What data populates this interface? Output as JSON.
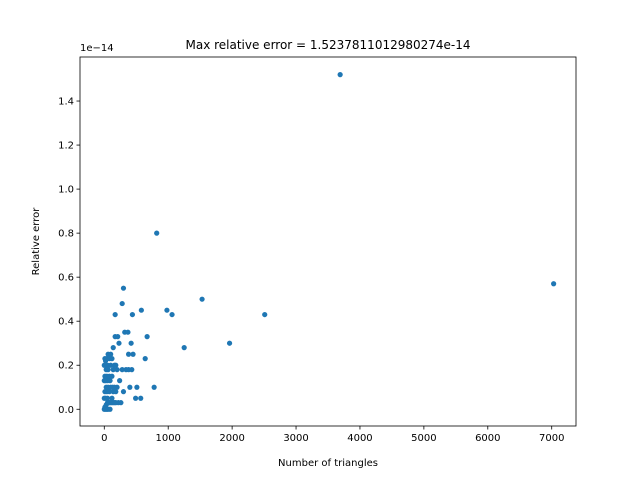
{
  "chart_data": {
    "type": "scatter",
    "title": "Max relative error = 1.5237811012980274e-14",
    "xlabel": "Number of triangles",
    "ylabel": "Relative error",
    "y_offset_label": "1e−14",
    "xlim": [
      -380,
      7380
    ],
    "ylim": [
      -0.076,
      1.6
    ],
    "xticks": [
      0,
      1000,
      2000,
      3000,
      4000,
      5000,
      6000,
      7000
    ],
    "yticks": [
      0.0,
      0.2,
      0.4,
      0.6,
      0.8,
      1.0,
      1.2,
      1.4
    ],
    "xtick_labels": [
      "0",
      "1000",
      "2000",
      "3000",
      "4000",
      "5000",
      "6000",
      "7000"
    ],
    "ytick_labels": [
      "0.0",
      "0.2",
      "0.4",
      "0.6",
      "0.8",
      "1.0",
      "1.2",
      "1.4"
    ],
    "grid": false,
    "color": "#1f77b4",
    "series": [
      {
        "points": [
          [
            3690,
            1.52
          ],
          [
            7030,
            0.57
          ],
          [
            820,
            0.8
          ],
          [
            1530,
            0.5
          ],
          [
            2510,
            0.43
          ],
          [
            1960,
            0.3
          ],
          [
            1250,
            0.28
          ],
          [
            980,
            0.45
          ],
          [
            1060,
            0.43
          ],
          [
            580,
            0.45
          ],
          [
            300,
            0.55
          ],
          [
            280,
            0.48
          ],
          [
            440,
            0.43
          ],
          [
            170,
            0.43
          ],
          [
            320,
            0.35
          ],
          [
            370,
            0.35
          ],
          [
            670,
            0.33
          ],
          [
            170,
            0.33
          ],
          [
            210,
            0.33
          ],
          [
            420,
            0.3
          ],
          [
            230,
            0.3
          ],
          [
            380,
            0.25
          ],
          [
            450,
            0.25
          ],
          [
            640,
            0.23
          ],
          [
            280,
            0.18
          ],
          [
            340,
            0.18
          ],
          [
            380,
            0.18
          ],
          [
            430,
            0.18
          ],
          [
            780,
            0.1
          ],
          [
            510,
            0.1
          ],
          [
            400,
            0.1
          ],
          [
            300,
            0.08
          ],
          [
            490,
            0.05
          ],
          [
            570,
            0.05
          ],
          [
            220,
            0.03
          ],
          [
            260,
            0.03
          ],
          [
            240,
            0.13
          ],
          [
            200,
            0.1
          ],
          [
            140,
            0.28
          ],
          [
            0,
            0.0
          ],
          [
            10,
            0.01
          ],
          [
            20,
            0.0
          ],
          [
            30,
            0.02
          ],
          [
            40,
            0.0
          ],
          [
            50,
            0.03
          ],
          [
            60,
            0.0
          ],
          [
            70,
            0.03
          ],
          [
            80,
            0.03
          ],
          [
            90,
            0.0
          ],
          [
            100,
            0.03
          ],
          [
            120,
            0.03
          ],
          [
            140,
            0.03
          ],
          [
            160,
            0.03
          ],
          [
            180,
            0.03
          ],
          [
            0,
            0.05
          ],
          [
            10,
            0.08
          ],
          [
            20,
            0.05
          ],
          [
            30,
            0.1
          ],
          [
            40,
            0.08
          ],
          [
            50,
            0.05
          ],
          [
            60,
            0.1
          ],
          [
            80,
            0.08
          ],
          [
            100,
            0.1
          ],
          [
            120,
            0.05
          ],
          [
            140,
            0.08
          ],
          [
            160,
            0.1
          ],
          [
            180,
            0.08
          ],
          [
            0,
            0.13
          ],
          [
            10,
            0.15
          ],
          [
            20,
            0.13
          ],
          [
            30,
            0.18
          ],
          [
            40,
            0.15
          ],
          [
            50,
            0.2
          ],
          [
            60,
            0.18
          ],
          [
            80,
            0.15
          ],
          [
            100,
            0.2
          ],
          [
            120,
            0.15
          ],
          [
            140,
            0.18
          ],
          [
            160,
            0.2
          ],
          [
            180,
            0.2
          ],
          [
            200,
            0.18
          ],
          [
            0,
            0.2
          ],
          [
            10,
            0.23
          ],
          [
            20,
            0.22
          ],
          [
            40,
            0.23
          ],
          [
            60,
            0.25
          ],
          [
            80,
            0.23
          ],
          [
            100,
            0.25
          ],
          [
            120,
            0.23
          ],
          [
            50,
            0.13
          ],
          [
            90,
            0.13
          ],
          [
            130,
            0.1
          ]
        ]
      }
    ]
  }
}
